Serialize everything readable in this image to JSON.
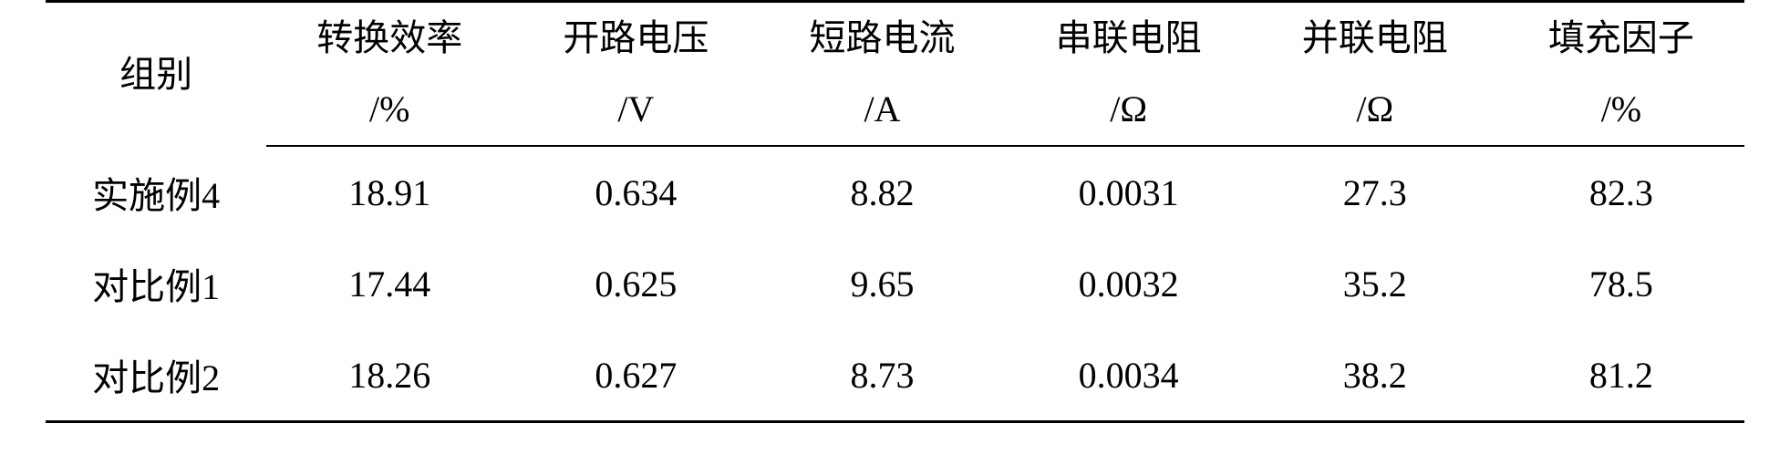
{
  "table": {
    "type": "table",
    "background_color": "#ffffff",
    "text_color": "#000000",
    "font_family": "SimSun",
    "header_fontsize": 40,
    "body_fontsize": 40,
    "border_color": "#000000",
    "top_rule_width": 3,
    "mid_rule_width": 2,
    "bottom_rule_width": 3,
    "row_height_header": 78,
    "row_height_body": 100,
    "group_label": "组别",
    "columns": [
      {
        "name": "转换效率",
        "unit": "/%",
        "align": "center"
      },
      {
        "name": "开路电压",
        "unit": "/V",
        "align": "center"
      },
      {
        "name": "短路电流",
        "unit": "/A",
        "align": "center"
      },
      {
        "name": "串联电阻",
        "unit": "/Ω",
        "align": "center"
      },
      {
        "name": "并联电阻",
        "unit": "/Ω",
        "align": "center"
      },
      {
        "name": "填充因子",
        "unit": "/%",
        "align": "center"
      }
    ],
    "rows": [
      {
        "label": "实施例4",
        "values": [
          "18.91",
          "0.634",
          "8.82",
          "0.0031",
          "27.3",
          "82.3"
        ]
      },
      {
        "label": "对比例1",
        "values": [
          "17.44",
          "0.625",
          "9.65",
          "0.0032",
          "35.2",
          "78.5"
        ]
      },
      {
        "label": "对比例2",
        "values": [
          "18.26",
          "0.627",
          "8.73",
          "0.0034",
          "38.2",
          "81.2"
        ]
      }
    ]
  }
}
